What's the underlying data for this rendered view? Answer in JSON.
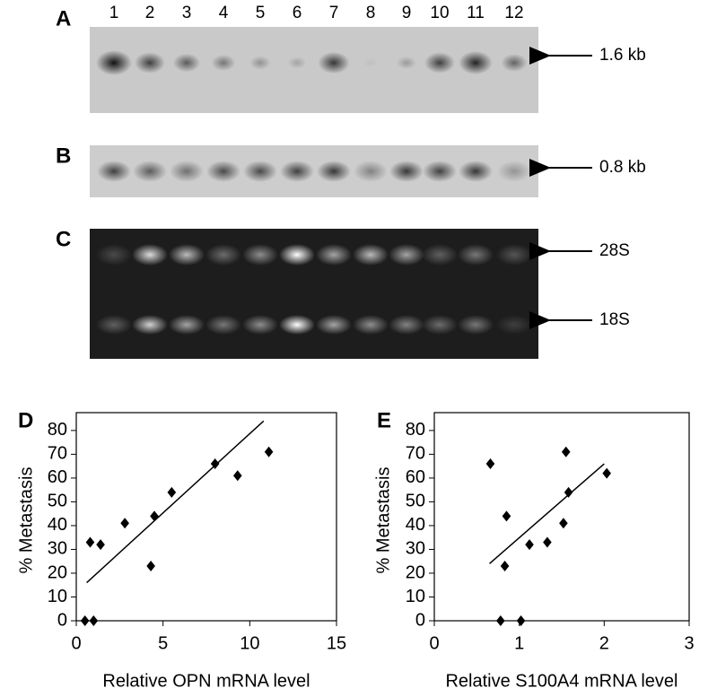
{
  "blots": {
    "lanes": [
      "1",
      "2",
      "3",
      "4",
      "5",
      "6",
      "7",
      "8",
      "9",
      "10",
      "11",
      "12"
    ],
    "panels": [
      {
        "letter": "A",
        "markers": [
          "1.6 kb"
        ]
      },
      {
        "letter": "B",
        "markers": [
          "0.8 kb"
        ]
      },
      {
        "letter": "C",
        "markers": [
          "28S",
          "18S"
        ]
      }
    ]
  },
  "chart_data": [
    {
      "type": "scatter",
      "panel": "D",
      "x_label": "Relative OPN mRNA level",
      "y_label": "% Metastasis",
      "series": [
        {
          "color": "#000000",
          "x": [
            0.5,
            1,
            0.8,
            1.4,
            2.8,
            4.5,
            4.3,
            5.5,
            8,
            9.3,
            11.1
          ],
          "values": [
            0,
            0,
            33,
            32,
            41,
            44,
            23,
            54,
            66,
            61,
            71
          ]
        }
      ],
      "trendline": {
        "x": [
          0.6,
          10.8
        ],
        "values": [
          16,
          84
        ]
      },
      "xlim": [
        0,
        15
      ],
      "xticks": [
        0,
        5,
        10,
        15
      ],
      "ylim": [
        0,
        87.5
      ],
      "yticks": [
        0,
        10,
        20,
        30,
        40,
        50,
        60,
        70,
        80
      ]
    },
    {
      "type": "scatter",
      "panel": "E",
      "x_label": "Relative S100A4 mRNA level",
      "y_label": "% Metastasis",
      "series": [
        {
          "color": "#000000",
          "x": [
            0.66,
            0.78,
            0.85,
            0.83,
            1.02,
            1.12,
            1.33,
            1.52,
            1.55,
            1.58,
            2.03
          ],
          "values": [
            66,
            0,
            44,
            23,
            0,
            32,
            33,
            41,
            71,
            54,
            62
          ]
        }
      ],
      "trendline": {
        "x": [
          0.65,
          2.0
        ],
        "values": [
          24,
          66
        ]
      },
      "xlim": [
        0,
        3
      ],
      "xticks": [
        0,
        1,
        2,
        3
      ],
      "ylim": [
        0,
        87.5
      ],
      "yticks": [
        0,
        10,
        20,
        30,
        40,
        50,
        60,
        70,
        80
      ]
    }
  ]
}
